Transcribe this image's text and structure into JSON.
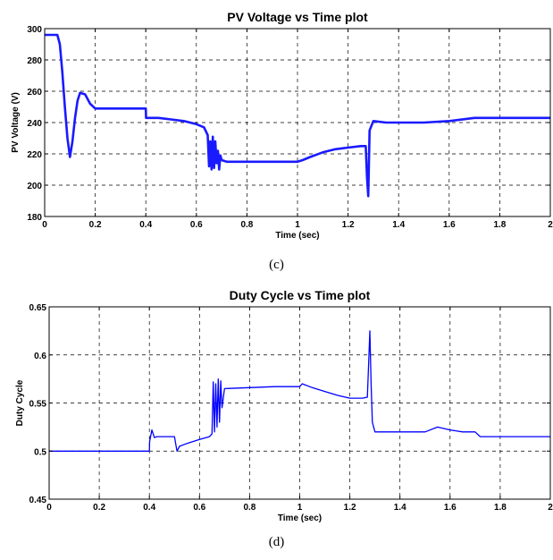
{
  "captions": {
    "c": "(c)",
    "d": "(d)"
  },
  "chart_data": [
    {
      "type": "line",
      "title": "PV Voltage vs Time plot",
      "xlabel": "Time (sec)",
      "ylabel": "PV Voltage (V)",
      "xlim": [
        0,
        2
      ],
      "ylim": [
        180,
        300
      ],
      "xticks": [
        0,
        0.2,
        0.4,
        0.6,
        0.8,
        1,
        1.2,
        1.4,
        1.6,
        1.8,
        2
      ],
      "yticks": [
        180,
        200,
        220,
        240,
        260,
        280,
        300
      ],
      "xtick_labels": [
        "0",
        "0.2",
        "0.4",
        "0.6",
        "0.8",
        "1",
        "1.2",
        "1.4",
        "1.6",
        "1.8",
        "2"
      ],
      "ytick_labels": [
        "180",
        "200",
        "220",
        "240",
        "260",
        "280",
        "300"
      ],
      "grid": true,
      "line_color": "#1a1aff",
      "series": [
        {
          "x": [
            0,
            0.05,
            0.06,
            0.07,
            0.08,
            0.09,
            0.1,
            0.11,
            0.12,
            0.13,
            0.14,
            0.16,
            0.18,
            0.2,
            0.25,
            0.3,
            0.35,
            0.4,
            0.401,
            0.45,
            0.5,
            0.55,
            0.6,
            0.63,
            0.645,
            0.65,
            0.655,
            0.66,
            0.665,
            0.67,
            0.675,
            0.68,
            0.685,
            0.69,
            0.695,
            0.7,
            0.72,
            0.8,
            0.9,
            1.0,
            1.02,
            1.05,
            1.1,
            1.15,
            1.2,
            1.25,
            1.27,
            1.275,
            1.28,
            1.285,
            1.3,
            1.35,
            1.4,
            1.5,
            1.6,
            1.7,
            1.8,
            1.9,
            2.0
          ],
          "y": [
            296,
            296,
            290,
            272,
            250,
            230,
            218,
            228,
            243,
            254,
            259,
            258,
            252,
            249,
            249,
            249,
            249,
            249,
            243,
            243,
            242,
            241,
            239,
            237,
            232,
            212,
            228,
            210,
            231,
            211,
            228,
            214,
            222,
            210,
            219,
            216,
            215,
            215,
            215,
            215,
            216,
            218,
            221,
            223,
            224,
            225,
            225,
            205,
            193,
            235,
            241,
            240,
            240,
            240,
            241,
            243,
            243,
            243,
            243
          ]
        }
      ]
    },
    {
      "type": "line",
      "title": "Duty Cycle vs Time plot",
      "xlabel": "Time (sec)",
      "ylabel": "Duty Cycle",
      "xlim": [
        0,
        2
      ],
      "ylim": [
        0.45,
        0.65
      ],
      "xticks": [
        0,
        0.2,
        0.4,
        0.6,
        0.8,
        1,
        1.2,
        1.4,
        1.6,
        1.8,
        2
      ],
      "yticks": [
        0.45,
        0.5,
        0.55,
        0.6,
        0.65
      ],
      "xtick_labels": [
        "0",
        "0.2",
        "0.4",
        "0.6",
        "0.8",
        "1",
        "1.2",
        "1.4",
        "1.6",
        "1.8",
        "2"
      ],
      "ytick_labels": [
        "0.45",
        "0.5",
        "0.55",
        "0.6",
        "0.65"
      ],
      "grid": true,
      "line_color": "#0000ff",
      "series": [
        {
          "x": [
            0,
            0.4,
            0.401,
            0.41,
            0.42,
            0.43,
            0.5,
            0.51,
            0.52,
            0.55,
            0.6,
            0.64,
            0.65,
            0.655,
            0.66,
            0.665,
            0.67,
            0.675,
            0.68,
            0.685,
            0.69,
            0.7,
            0.8,
            0.9,
            1.0,
            1.01,
            1.05,
            1.1,
            1.15,
            1.2,
            1.25,
            1.27,
            1.275,
            1.28,
            1.285,
            1.29,
            1.3,
            1.35,
            1.4,
            1.5,
            1.55,
            1.6,
            1.65,
            1.7,
            1.72,
            1.8,
            1.9,
            2.0
          ],
          "y": [
            0.5,
            0.5,
            0.51,
            0.522,
            0.514,
            0.515,
            0.515,
            0.5,
            0.505,
            0.508,
            0.512,
            0.515,
            0.518,
            0.572,
            0.52,
            0.57,
            0.525,
            0.575,
            0.53,
            0.573,
            0.545,
            0.565,
            0.566,
            0.567,
            0.567,
            0.57,
            0.566,
            0.562,
            0.558,
            0.555,
            0.555,
            0.556,
            0.59,
            0.625,
            0.57,
            0.53,
            0.52,
            0.52,
            0.52,
            0.52,
            0.525,
            0.522,
            0.52,
            0.52,
            0.515,
            0.515,
            0.515,
            0.515
          ]
        }
      ]
    }
  ]
}
